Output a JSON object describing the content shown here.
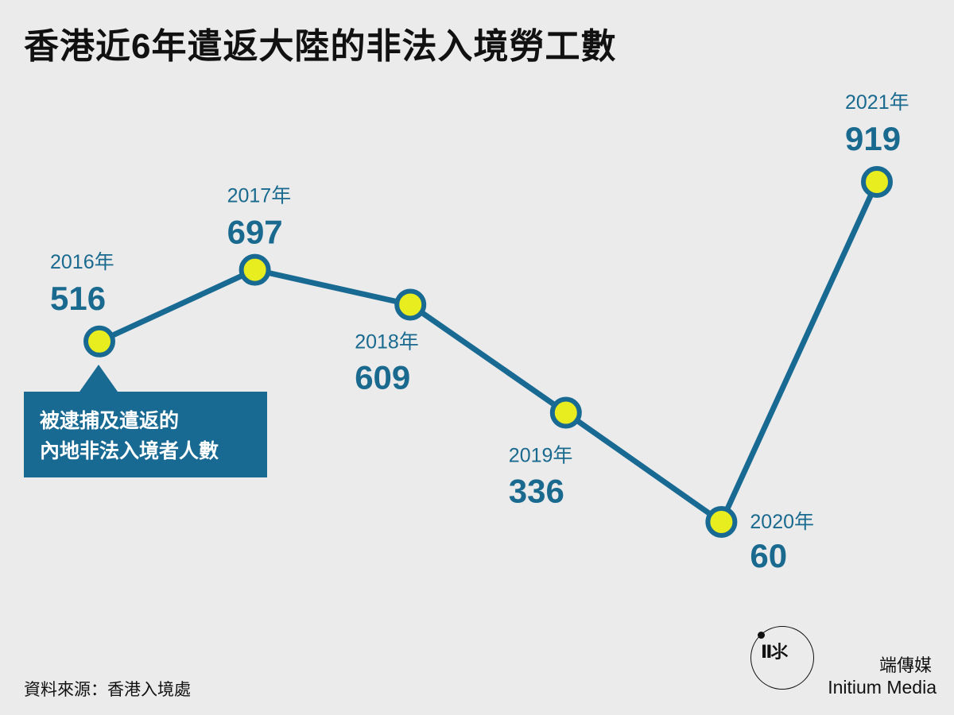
{
  "title": "香港近6年遣返大陸的非法入境勞工數",
  "chart_data": {
    "type": "line",
    "categories": [
      "2016年",
      "2017年",
      "2018年",
      "2019年",
      "2020年",
      "2021年"
    ],
    "values": [
      516,
      697,
      609,
      336,
      60,
      919
    ],
    "ylim": [
      0,
      1000
    ],
    "grid": false,
    "legend": "none",
    "line_color": "#186a93",
    "marker_color": "#e8ed1f"
  },
  "callout": {
    "line1": "被逮捕及遣返的",
    "line2": "內地非法入境者人數"
  },
  "source": "資料來源：香港入境處",
  "brand": {
    "name_cn": "端傳媒",
    "name_en": "Initium Media",
    "logo_icon": "initium-logo-icon"
  },
  "colors": {
    "background": "#ebebeb",
    "accent": "#186a93",
    "label": "#1a6a8f",
    "marker": "#e8ed1f"
  }
}
